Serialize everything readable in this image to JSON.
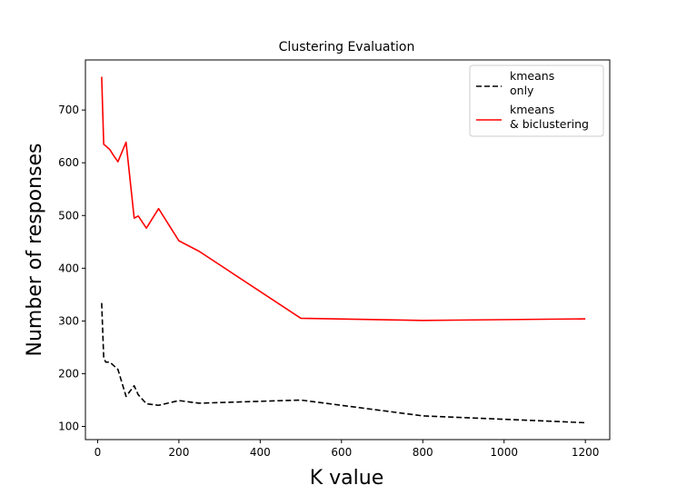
{
  "chart_data": {
    "type": "line",
    "title": "Clustering Evaluation",
    "xlabel": "K value",
    "ylabel": "Number of responses",
    "xlim": [
      -30,
      1260
    ],
    "ylim": [
      75,
      795
    ],
    "xticks": [
      0,
      200,
      400,
      600,
      800,
      1000,
      1200
    ],
    "yticks": [
      100,
      200,
      300,
      400,
      500,
      600,
      700
    ],
    "grid": false,
    "legend_position": "top-right",
    "series": [
      {
        "name_lines": [
          "kmeans",
          "only"
        ],
        "color": "#000000",
        "style": "dashed",
        "x": [
          10,
          15,
          20,
          30,
          40,
          50,
          70,
          90,
          100,
          120,
          150,
          200,
          250,
          500,
          800,
          1200
        ],
        "y": [
          334,
          230,
          222,
          222,
          215,
          208,
          157,
          177,
          160,
          143,
          140,
          149,
          144,
          150,
          120,
          107
        ]
      },
      {
        "name_lines": [
          "kmeans",
          "& biclustering"
        ],
        "color": "#ff0000",
        "style": "solid",
        "x": [
          10,
          15,
          20,
          30,
          40,
          50,
          70,
          90,
          100,
          120,
          150,
          200,
          250,
          500,
          800,
          1200
        ],
        "y": [
          763,
          635,
          632,
          625,
          613,
          602,
          639,
          495,
          499,
          476,
          513,
          452,
          432,
          305,
          301,
          304
        ]
      }
    ]
  }
}
